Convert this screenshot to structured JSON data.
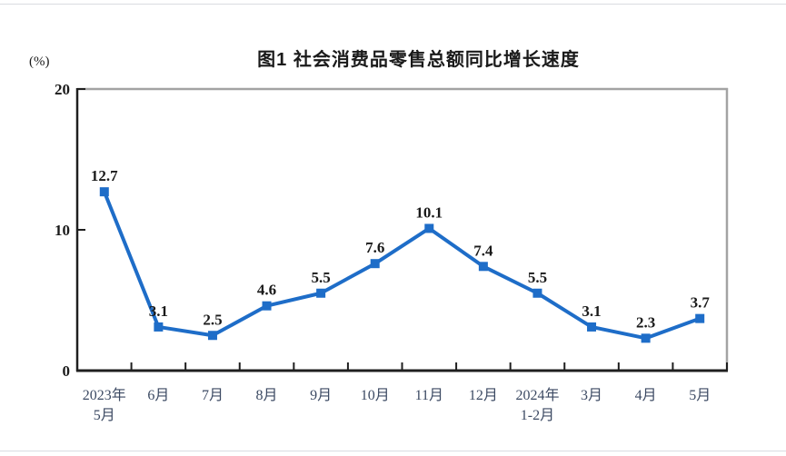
{
  "chart_data": {
    "type": "line",
    "title": "图1  社会消费品零售总额同比增长速度",
    "unit": "(%)",
    "categories": [
      "2023年\n5月",
      "6月",
      "7月",
      "8月",
      "9月",
      "10月",
      "11月",
      "12月",
      "2024年\n1-2月",
      "3月",
      "4月",
      "5月"
    ],
    "values": [
      12.7,
      3.1,
      2.5,
      4.6,
      5.5,
      7.6,
      10.1,
      7.4,
      5.5,
      3.1,
      2.3,
      3.7
    ],
    "data_labels": [
      "12.7",
      "3.1",
      "2.5",
      "4.6",
      "5.5",
      "7.6",
      "10.1",
      "7.4",
      "5.5",
      "3.1",
      "2.3",
      "3.7"
    ],
    "ylim": [
      0,
      20
    ],
    "yticks": [
      0,
      10,
      20
    ],
    "grid": false,
    "legend": "none",
    "marker": "square",
    "line_color": "#1e6dc8",
    "axis_color": "#1f1f1f",
    "plot_border_color": "#a3a3a3",
    "data_label_color": "#1a1a1a",
    "x_label_color": "#3c4a63"
  }
}
